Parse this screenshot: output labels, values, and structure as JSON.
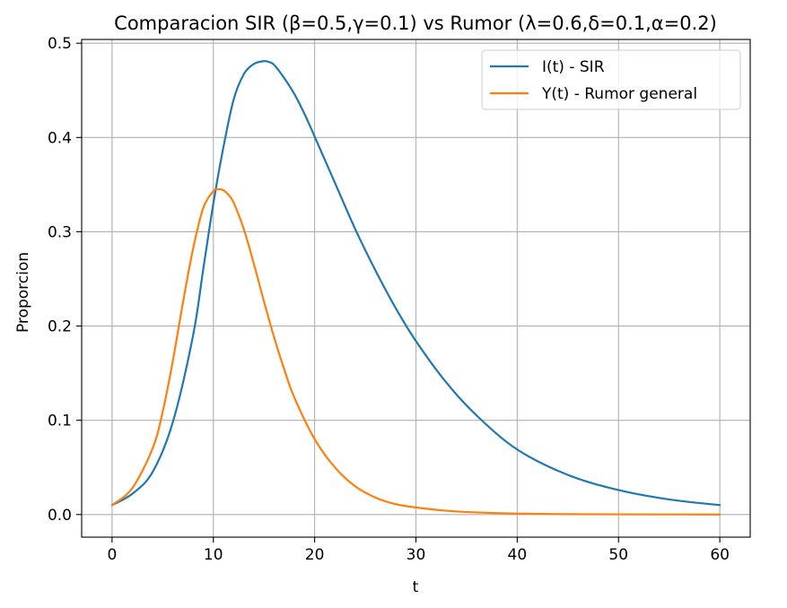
{
  "chart_data": {
    "type": "line",
    "title": "Comparacion SIR (β=0.5,γ=0.1) vs Rumor (λ=0.6,δ=0.1,α=0.2)",
    "xlabel": "t",
    "ylabel": "Proporcion",
    "xlim": [
      -3,
      63
    ],
    "ylim": [
      -0.024,
      0.504
    ],
    "xticks": [
      0,
      10,
      20,
      30,
      40,
      50,
      60
    ],
    "yticks": [
      0.0,
      0.1,
      0.2,
      0.3,
      0.4,
      0.5
    ],
    "xtick_labels": [
      "0",
      "10",
      "20",
      "30",
      "40",
      "50",
      "60"
    ],
    "ytick_labels": [
      "0.0",
      "0.1",
      "0.2",
      "0.3",
      "0.4",
      "0.5"
    ],
    "grid": true,
    "legend_position": "top-right",
    "series": [
      {
        "name": "I(t) - SIR",
        "color": "#1f77b4",
        "x": [
          0,
          2,
          4,
          6,
          8,
          9,
          10,
          11,
          12,
          13,
          14,
          15,
          15.5,
          16,
          17,
          18,
          19,
          20,
          22,
          24,
          26,
          28,
          30,
          33,
          36,
          40,
          45,
          50,
          55,
          60
        ],
        "y": [
          0.01,
          0.022,
          0.045,
          0.098,
          0.19,
          0.26,
          0.33,
          0.39,
          0.44,
          0.467,
          0.478,
          0.481,
          0.48,
          0.477,
          0.463,
          0.446,
          0.425,
          0.401,
          0.352,
          0.303,
          0.259,
          0.219,
          0.184,
          0.14,
          0.105,
          0.069,
          0.042,
          0.026,
          0.016,
          0.01
        ]
      },
      {
        "name": "Y(t) - Rumor general",
        "color": "#ff7f0e",
        "x": [
          0,
          2,
          4,
          5,
          6,
          7,
          8,
          9,
          10,
          10.5,
          11,
          11.5,
          12,
          13,
          14,
          15,
          16,
          17,
          18,
          20,
          22,
          24,
          26,
          28,
          30,
          33,
          36,
          40,
          45,
          50,
          60
        ],
        "y": [
          0.01,
          0.028,
          0.07,
          0.109,
          0.163,
          0.225,
          0.282,
          0.325,
          0.343,
          0.345,
          0.344,
          0.339,
          0.331,
          0.303,
          0.266,
          0.226,
          0.188,
          0.154,
          0.124,
          0.08,
          0.05,
          0.03,
          0.018,
          0.011,
          0.0075,
          0.004,
          0.0022,
          0.001,
          0.0004,
          0.0002,
          0.0
        ]
      }
    ]
  }
}
